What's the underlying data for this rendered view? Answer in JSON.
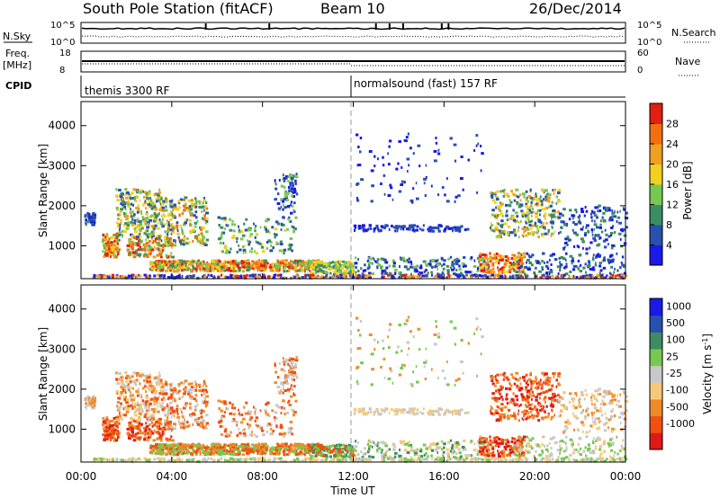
{
  "header": {
    "title": "South Pole Station (fitACF)",
    "beam": "Beam 10",
    "date": "26/Dec/2014"
  },
  "left_labels": {
    "nsky": "N.Sky",
    "freq_line1": "Freq.",
    "freq_line2": "[MHz]",
    "cpid": "CPID"
  },
  "right_labels": {
    "nsearch": "N.Search",
    "nave": "Nave"
  },
  "noise_panel": {
    "left_ticks": [
      "10^5",
      "10^0"
    ],
    "right_ticks": [
      "10^5",
      "10^0"
    ]
  },
  "freq_panel": {
    "left_ticks": [
      "18",
      "8"
    ],
    "right_ticks": [
      "60",
      "0"
    ]
  },
  "cpid_panel": {
    "modes": [
      "themis 3300 RF",
      "normalsound (fast) 157 RF"
    ],
    "switch_hour": 12.0
  },
  "colors": {
    "power": [
      "#1a1ae6",
      "#2850b0",
      "#3c8c64",
      "#78c850",
      "#f0d020",
      "#f0a020",
      "#f07010",
      "#e02010"
    ],
    "velocity": [
      "#e01818",
      "#f05010",
      "#f08c28",
      "#f8c878",
      "#c8c8c8",
      "#78c850",
      "#3c8c64",
      "#2850b0",
      "#1a1ae6"
    ]
  },
  "chart_data": [
    {
      "type": "heatmap",
      "ylabel": "Slant Range [km]",
      "xlabel": "",
      "x_ticks": [
        "00:00",
        "04:00",
        "08:00",
        "12:00",
        "16:00",
        "20:00",
        "00:00"
      ],
      "xlim": [
        0,
        24
      ],
      "ylim": [
        180,
        4600
      ],
      "y_ticks": [
        1000,
        2000,
        3000,
        4000
      ],
      "colorbar": {
        "label": "Power [dB]",
        "ticks": [
          "28",
          "24",
          "20",
          "16",
          "12",
          "8",
          "4"
        ],
        "range": [
          0,
          32
        ]
      },
      "reference_line_hour": 12.0
    },
    {
      "type": "heatmap",
      "ylabel": "Slant Range [km]",
      "xlabel": "Time UT",
      "x_ticks": [
        "00:00",
        "04:00",
        "08:00",
        "12:00",
        "16:00",
        "20:00",
        "00:00"
      ],
      "xlim": [
        0,
        24
      ],
      "ylim": [
        180,
        4600
      ],
      "y_ticks": [
        1000,
        2000,
        3000,
        4000
      ],
      "colorbar": {
        "label": "Velocity [m s^-1]",
        "ticks": [
          "1000",
          "500",
          "100",
          "25",
          "-25",
          "-100",
          "-500",
          "-1000"
        ]
      },
      "reference_line_hour": 12.0
    }
  ]
}
